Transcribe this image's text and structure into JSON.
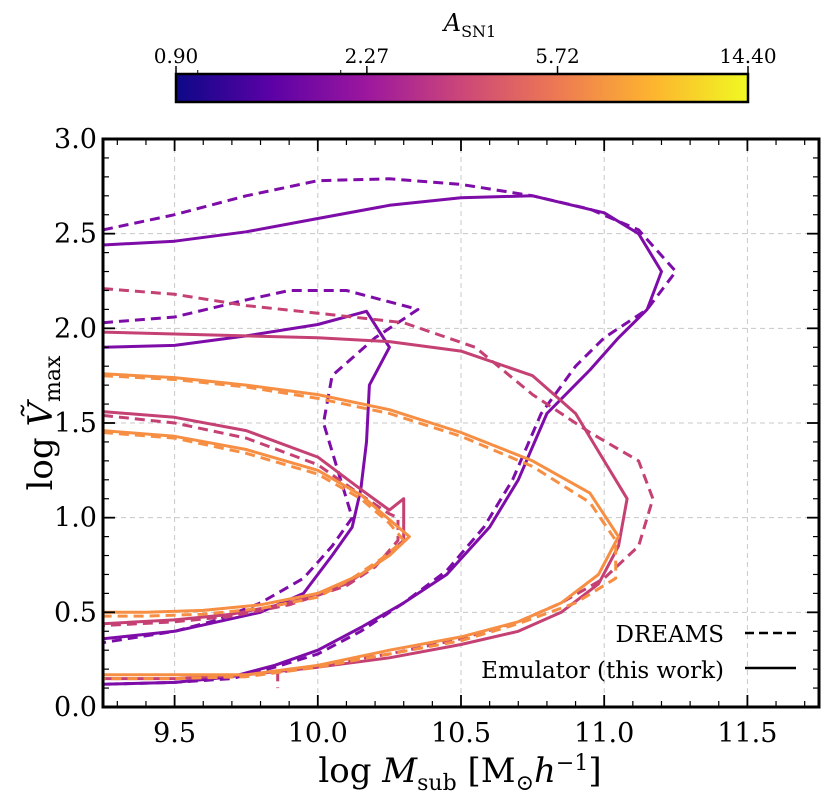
{
  "chart_data": {
    "type": "contour",
    "xlabel": "log M_sub [M⊙h⁻¹]",
    "ylabel": "log Ṽ_max",
    "xlim": [
      9.25,
      11.75
    ],
    "ylim": [
      0.0,
      3.0
    ],
    "xticks": [
      "9.5",
      "10.0",
      "10.5",
      "11.0",
      "11.5"
    ],
    "xtick_values": [
      9.5,
      10.0,
      10.5,
      11.0,
      11.5
    ],
    "yticks": [
      "0.0",
      "0.5",
      "1.0",
      "1.5",
      "2.0",
      "2.5",
      "3.0"
    ],
    "ytick_values": [
      0.0,
      0.5,
      1.0,
      1.5,
      2.0,
      2.5,
      3.0
    ],
    "grid": true,
    "colorbar": {
      "label": "A_SN1",
      "tick_labels": [
        "0.90",
        "2.27",
        "5.72",
        "14.40"
      ],
      "tick_values": [
        0.9,
        2.27,
        5.72,
        14.4
      ],
      "colormap": "plasma",
      "scale": "log",
      "gradient_colors": [
        "#0d0887",
        "#5c01a6",
        "#9c179e",
        "#cc4778",
        "#ed7953",
        "#fdb42f",
        "#f0f921"
      ]
    },
    "legend": {
      "position": "bottom-right",
      "entries": [
        {
          "label": "DREAMS",
          "style": "dashed"
        },
        {
          "label": "Emulator (this work)",
          "style": "solid"
        }
      ]
    },
    "series": [
      {
        "name": "A_SN1 low, outer",
        "a_sn1": 1.9,
        "color": "#7e0ca8",
        "style": "solid",
        "points": [
          [
            9.25,
            2.44
          ],
          [
            9.5,
            2.46
          ],
          [
            9.75,
            2.51
          ],
          [
            10.0,
            2.58
          ],
          [
            10.25,
            2.65
          ],
          [
            10.5,
            2.69
          ],
          [
            10.75,
            2.7
          ],
          [
            11.0,
            2.61
          ],
          [
            11.12,
            2.5
          ],
          [
            11.2,
            2.3
          ],
          [
            11.15,
            2.1
          ],
          [
            11.05,
            1.95
          ],
          [
            10.95,
            1.78
          ],
          [
            10.8,
            1.55
          ],
          [
            10.7,
            1.2
          ],
          [
            10.6,
            0.95
          ],
          [
            10.45,
            0.7
          ],
          [
            10.3,
            0.55
          ],
          [
            10.15,
            0.42
          ],
          [
            10.0,
            0.3
          ],
          [
            9.85,
            0.22
          ],
          [
            9.7,
            0.16
          ],
          [
            9.5,
            0.13
          ],
          [
            9.25,
            0.12
          ]
        ]
      },
      {
        "name": "A_SN1 low, outer",
        "a_sn1": 1.9,
        "color": "#7e0ca8",
        "style": "dashed",
        "points": [
          [
            9.25,
            2.52
          ],
          [
            9.5,
            2.6
          ],
          [
            9.75,
            2.7
          ],
          [
            10.0,
            2.78
          ],
          [
            10.25,
            2.79
          ],
          [
            10.5,
            2.76
          ],
          [
            10.75,
            2.7
          ],
          [
            10.95,
            2.63
          ],
          [
            11.12,
            2.52
          ],
          [
            11.25,
            2.3
          ],
          [
            11.15,
            2.1
          ],
          [
            11.0,
            1.95
          ],
          [
            10.9,
            1.8
          ],
          [
            10.78,
            1.55
          ],
          [
            10.68,
            1.2
          ],
          [
            10.58,
            0.95
          ],
          [
            10.45,
            0.72
          ],
          [
            10.3,
            0.55
          ],
          [
            10.15,
            0.4
          ],
          [
            10.0,
            0.28
          ],
          [
            9.85,
            0.21
          ],
          [
            9.7,
            0.15
          ],
          [
            9.5,
            0.13
          ],
          [
            9.25,
            0.12
          ]
        ]
      },
      {
        "name": "A_SN1 low, inner",
        "a_sn1": 1.9,
        "color": "#7e0ca8",
        "style": "solid",
        "points": [
          [
            9.25,
            1.9
          ],
          [
            9.5,
            1.91
          ],
          [
            9.75,
            1.96
          ],
          [
            10.0,
            2.02
          ],
          [
            10.17,
            2.09
          ],
          [
            10.25,
            1.9
          ],
          [
            10.18,
            1.7
          ],
          [
            10.17,
            1.4
          ],
          [
            10.15,
            1.15
          ],
          [
            10.12,
            0.95
          ],
          [
            10.05,
            0.8
          ],
          [
            9.95,
            0.6
          ],
          [
            9.8,
            0.5
          ],
          [
            9.65,
            0.45
          ],
          [
            9.5,
            0.4
          ],
          [
            9.25,
            0.36
          ]
        ]
      },
      {
        "name": "A_SN1 low, inner",
        "a_sn1": 1.9,
        "color": "#7e0ca8",
        "style": "dashed",
        "points": [
          [
            9.25,
            2.03
          ],
          [
            9.5,
            2.06
          ],
          [
            9.75,
            2.15
          ],
          [
            9.9,
            2.2
          ],
          [
            10.1,
            2.2
          ],
          [
            10.35,
            2.1
          ],
          [
            10.2,
            1.95
          ],
          [
            10.05,
            1.75
          ],
          [
            10.02,
            1.5
          ],
          [
            10.07,
            1.25
          ],
          [
            10.12,
            1.0
          ],
          [
            10.05,
            0.85
          ],
          [
            9.95,
            0.68
          ],
          [
            9.8,
            0.55
          ],
          [
            9.65,
            0.46
          ],
          [
            9.5,
            0.4
          ],
          [
            9.25,
            0.34
          ]
        ]
      },
      {
        "name": "A_SN1 mid, outer",
        "a_sn1": 4.2,
        "color": "#c54174",
        "style": "solid",
        "points": [
          [
            9.25,
            1.98
          ],
          [
            9.5,
            1.97
          ],
          [
            9.75,
            1.96
          ],
          [
            10.0,
            1.95
          ],
          [
            10.25,
            1.93
          ],
          [
            10.5,
            1.88
          ],
          [
            10.75,
            1.75
          ],
          [
            10.9,
            1.55
          ],
          [
            11.0,
            1.3
          ],
          [
            11.08,
            1.1
          ],
          [
            11.05,
            0.85
          ],
          [
            10.98,
            0.65
          ],
          [
            10.85,
            0.5
          ],
          [
            10.7,
            0.4
          ],
          [
            10.5,
            0.33
          ],
          [
            10.25,
            0.26
          ],
          [
            10.0,
            0.21
          ],
          [
            9.75,
            0.17
          ],
          [
            9.5,
            0.15
          ],
          [
            9.25,
            0.15
          ]
        ]
      },
      {
        "name": "A_SN1 mid, outer",
        "a_sn1": 4.2,
        "color": "#c54174",
        "style": "dashed",
        "points": [
          [
            9.25,
            2.21
          ],
          [
            9.5,
            2.18
          ],
          [
            9.75,
            2.12
          ],
          [
            10.0,
            2.08
          ],
          [
            10.3,
            2.03
          ],
          [
            10.55,
            1.9
          ],
          [
            10.75,
            1.65
          ],
          [
            10.95,
            1.45
          ],
          [
            11.12,
            1.3
          ],
          [
            11.17,
            1.1
          ],
          [
            11.12,
            0.85
          ],
          [
            11.0,
            0.68
          ],
          [
            10.85,
            0.55
          ],
          [
            10.7,
            0.45
          ],
          [
            10.5,
            0.36
          ],
          [
            10.25,
            0.28
          ],
          [
            10.0,
            0.22
          ],
          [
            9.86,
            0.18
          ],
          [
            9.86,
            0.1
          ]
        ]
      },
      {
        "name": "A_SN1 mid, inner",
        "a_sn1": 4.2,
        "color": "#c54174",
        "style": "solid",
        "points": [
          [
            9.25,
            1.56
          ],
          [
            9.5,
            1.53
          ],
          [
            9.75,
            1.46
          ],
          [
            10.0,
            1.32
          ],
          [
            10.15,
            1.15
          ],
          [
            10.25,
            1.04
          ],
          [
            10.3,
            1.1
          ],
          [
            10.3,
            0.88
          ],
          [
            10.2,
            0.75
          ],
          [
            10.1,
            0.65
          ],
          [
            9.9,
            0.55
          ],
          [
            9.7,
            0.49
          ],
          [
            9.5,
            0.46
          ],
          [
            9.25,
            0.44
          ]
        ]
      },
      {
        "name": "A_SN1 mid, inner",
        "a_sn1": 4.2,
        "color": "#c54174",
        "style": "dashed",
        "points": [
          [
            9.25,
            1.54
          ],
          [
            9.5,
            1.5
          ],
          [
            9.75,
            1.42
          ],
          [
            10.0,
            1.28
          ],
          [
            10.15,
            1.12
          ],
          [
            10.25,
            1.02
          ],
          [
            10.28,
            1.0
          ],
          [
            10.28,
            0.88
          ],
          [
            10.2,
            0.74
          ],
          [
            10.1,
            0.64
          ],
          [
            9.9,
            0.54
          ],
          [
            9.7,
            0.48
          ],
          [
            9.5,
            0.45
          ],
          [
            9.25,
            0.43
          ]
        ]
      },
      {
        "name": "A_SN1 high, outer",
        "a_sn1": 9.5,
        "color": "#f68f44",
        "style": "solid",
        "points": [
          [
            9.25,
            1.76
          ],
          [
            9.5,
            1.74
          ],
          [
            9.75,
            1.7
          ],
          [
            10.0,
            1.65
          ],
          [
            10.25,
            1.57
          ],
          [
            10.5,
            1.45
          ],
          [
            10.75,
            1.3
          ],
          [
            10.95,
            1.13
          ],
          [
            11.05,
            0.9
          ],
          [
            10.98,
            0.7
          ],
          [
            10.85,
            0.55
          ],
          [
            10.7,
            0.45
          ],
          [
            10.5,
            0.37
          ],
          [
            10.25,
            0.3
          ],
          [
            10.0,
            0.22
          ],
          [
            9.75,
            0.17
          ],
          [
            9.5,
            0.17
          ],
          [
            9.25,
            0.17
          ]
        ]
      },
      {
        "name": "A_SN1 high, outer",
        "a_sn1": 9.5,
        "color": "#f68f44",
        "style": "dashed",
        "points": [
          [
            9.25,
            1.75
          ],
          [
            9.5,
            1.73
          ],
          [
            9.75,
            1.69
          ],
          [
            10.0,
            1.63
          ],
          [
            10.25,
            1.55
          ],
          [
            10.5,
            1.43
          ],
          [
            10.75,
            1.27
          ],
          [
            10.95,
            1.08
          ],
          [
            11.04,
            0.88
          ],
          [
            11.04,
            0.68
          ],
          [
            10.9,
            0.55
          ],
          [
            10.7,
            0.44
          ],
          [
            10.5,
            0.35
          ],
          [
            10.25,
            0.28
          ],
          [
            10.0,
            0.21
          ],
          [
            9.75,
            0.16
          ],
          [
            9.5,
            0.15
          ],
          [
            9.25,
            0.15
          ]
        ]
      },
      {
        "name": "A_SN1 high, inner",
        "a_sn1": 9.5,
        "color": "#f68f44",
        "style": "solid",
        "points": [
          [
            9.25,
            1.46
          ],
          [
            9.5,
            1.43
          ],
          [
            9.75,
            1.36
          ],
          [
            10.0,
            1.25
          ],
          [
            10.15,
            1.12
          ],
          [
            10.25,
            0.99
          ],
          [
            10.32,
            0.9
          ],
          [
            10.25,
            0.8
          ],
          [
            10.15,
            0.7
          ],
          [
            10.0,
            0.6
          ],
          [
            9.8,
            0.54
          ],
          [
            9.6,
            0.51
          ],
          [
            9.4,
            0.5
          ],
          [
            9.25,
            0.5
          ]
        ]
      },
      {
        "name": "A_SN1 high, inner",
        "a_sn1": 9.5,
        "color": "#f68f44",
        "style": "dashed",
        "points": [
          [
            9.25,
            1.45
          ],
          [
            9.5,
            1.42
          ],
          [
            9.75,
            1.34
          ],
          [
            10.0,
            1.23
          ],
          [
            10.15,
            1.1
          ],
          [
            10.25,
            0.97
          ],
          [
            10.3,
            0.88
          ],
          [
            10.22,
            0.78
          ],
          [
            10.12,
            0.68
          ],
          [
            10.0,
            0.58
          ],
          [
            9.8,
            0.52
          ],
          [
            9.6,
            0.49
          ],
          [
            9.4,
            0.48
          ],
          [
            9.25,
            0.48
          ]
        ]
      }
    ]
  }
}
